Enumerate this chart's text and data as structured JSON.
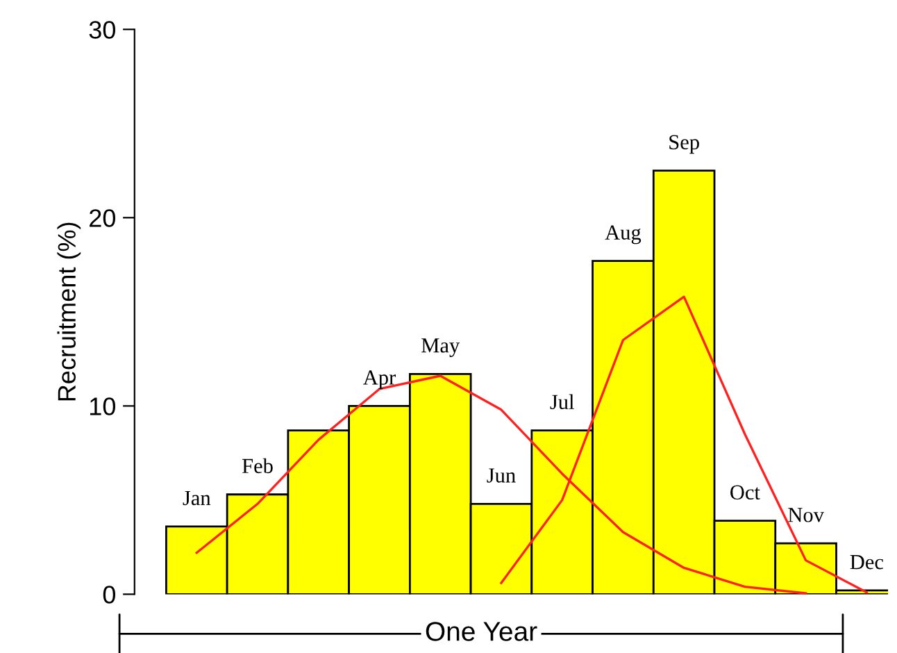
{
  "chart_data": {
    "type": "bar",
    "xlabel": "One Year",
    "ylabel": "Recruitment (%)",
    "categories": [
      "Jan",
      "Feb",
      null,
      "Apr",
      "May",
      "Jun",
      "Jul",
      "Aug",
      "Sep",
      "Oct",
      "Nov",
      "Dec"
    ],
    "ylim": [
      0,
      30
    ],
    "yticks": [
      0,
      10,
      20,
      30
    ],
    "grid": false,
    "legend": false,
    "series": [
      {
        "color": "#ffff00",
        "values": [
          3.6,
          5.3,
          8.7,
          10.0,
          11.7,
          4.8,
          8.7,
          17.7,
          22.5,
          3.9,
          2.7,
          0.2
        ]
      },
      {
        "type": "line",
        "color": "#ff2020",
        "values": [
          2.2,
          4.8,
          8.2,
          10.9,
          11.6,
          9.8,
          6.4,
          3.3,
          1.4,
          0.4,
          0.05,
          null
        ]
      },
      {
        "type": "line",
        "color": "#ff2020",
        "values": [
          null,
          null,
          null,
          null,
          null,
          0.6,
          5,
          13.5,
          15.8,
          8.5,
          1.8,
          0.1
        ]
      }
    ]
  }
}
